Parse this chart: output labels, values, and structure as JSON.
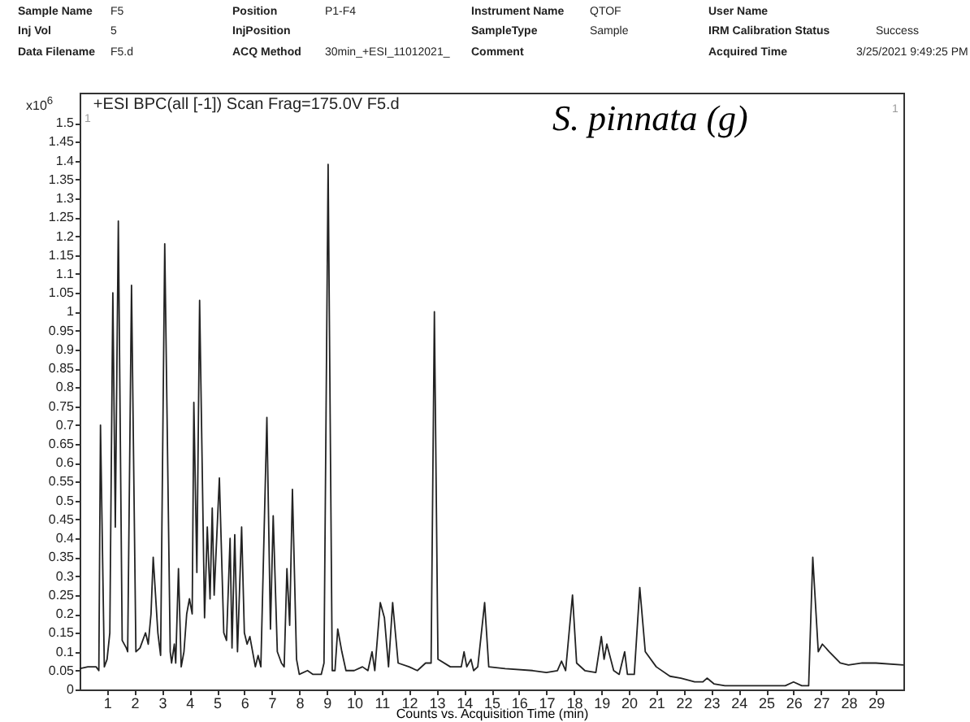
{
  "chart_data": {
    "type": "line",
    "title": "+ESI BPC(all [-1]) Scan Frag=175.0V F5.d",
    "xlabel": "Counts vs. Acquisition Time (min)",
    "ylabel": "x10$^{6}$",
    "annotations": [
      "Sample Name",
      "F5",
      "Position",
      "P1-F4",
      "Instrument Name",
      "QTOF",
      "User Name",
      "Inj Vol",
      "5",
      "InjPosition",
      "SampleType",
      "Sample",
      "IRM Calibration Status",
      "Success",
      "Data Filename",
      "F5.d",
      "ACQ Method",
      "30min_+ESI_11012021_",
      "Comment",
      "Acquired Time",
      "3/25/2021 9:49:25 PM",
      "S. pinnata (g)",
      "1",
      "1"
    ],
    "x": [
      0,
      0.3,
      0.6,
      0.7,
      0.76,
      0.9,
      1.0,
      1.1,
      1.21,
      1.3,
      1.41,
      1.55,
      1.7,
      1.75,
      1.89,
      2.05,
      2.2,
      2.4,
      2.5,
      2.6,
      2.68,
      2.85,
      2.95,
      3.1,
      3.3,
      3.35,
      3.45,
      3.5,
      3.6,
      3.7,
      3.8,
      3.9,
      4.0,
      4.1,
      4.16,
      4.27,
      4.37,
      4.55,
      4.65,
      4.75,
      4.83,
      4.9,
      5.09,
      5.25,
      5.35,
      5.48,
      5.55,
      5.65,
      5.75,
      5.9,
      6.0,
      6.1,
      6.2,
      6.4,
      6.5,
      6.6,
      6.82,
      6.95,
      7.05,
      7.2,
      7.35,
      7.45,
      7.55,
      7.65,
      7.75,
      7.9,
      8.0,
      8.3,
      8.5,
      8.8,
      8.9,
      9.05,
      9.2,
      9.3,
      9.4,
      9.55,
      9.7,
      10.0,
      10.3,
      10.5,
      10.65,
      10.75,
      10.95,
      11.1,
      11.25,
      11.4,
      11.6,
      12.0,
      12.3,
      12.6,
      12.8,
      12.92,
      13.05,
      13.5,
      13.9,
      14.0,
      14.1,
      14.25,
      14.35,
      14.5,
      14.75,
      14.9,
      15.5,
      16.5,
      17.0,
      17.4,
      17.55,
      17.7,
      17.95,
      18.1,
      18.4,
      18.8,
      19.0,
      19.1,
      19.2,
      19.45,
      19.65,
      19.85,
      19.95,
      20.2,
      20.4,
      20.6,
      21.0,
      21.5,
      21.9,
      22.4,
      22.7,
      22.85,
      23.1,
      23.5,
      25.7,
      26.0,
      26.3,
      26.55,
      26.7,
      26.9,
      27.05,
      27.3,
      27.7,
      28.0,
      28.5,
      29,
      30
    ],
    "values": [
      0.055,
      0.06,
      0.06,
      0.05,
      0.7,
      0.06,
      0.08,
      0.15,
      1.05,
      0.43,
      1.24,
      0.13,
      0.11,
      0.1,
      1.07,
      0.1,
      0.11,
      0.15,
      0.12,
      0.2,
      0.35,
      0.15,
      0.09,
      1.18,
      0.1,
      0.07,
      0.12,
      0.07,
      0.32,
      0.06,
      0.1,
      0.2,
      0.24,
      0.2,
      0.76,
      0.31,
      1.03,
      0.19,
      0.43,
      0.24,
      0.48,
      0.25,
      0.56,
      0.15,
      0.13,
      0.4,
      0.11,
      0.41,
      0.1,
      0.43,
      0.15,
      0.12,
      0.14,
      0.06,
      0.09,
      0.06,
      0.72,
      0.16,
      0.46,
      0.1,
      0.07,
      0.06,
      0.32,
      0.17,
      0.53,
      0.08,
      0.04,
      0.05,
      0.04,
      0.04,
      0.07,
      1.39,
      0.05,
      0.05,
      0.16,
      0.1,
      0.05,
      0.05,
      0.06,
      0.05,
      0.1,
      0.05,
      0.23,
      0.19,
      0.06,
      0.23,
      0.07,
      0.06,
      0.05,
      0.07,
      0.07,
      1.0,
      0.08,
      0.06,
      0.06,
      0.1,
      0.06,
      0.08,
      0.05,
      0.06,
      0.23,
      0.06,
      0.055,
      0.05,
      0.045,
      0.05,
      0.075,
      0.05,
      0.25,
      0.07,
      0.05,
      0.045,
      0.14,
      0.08,
      0.12,
      0.05,
      0.04,
      0.1,
      0.04,
      0.04,
      0.27,
      0.1,
      0.06,
      0.035,
      0.03,
      0.02,
      0.02,
      0.03,
      0.015,
      0.01,
      0.01,
      0.02,
      0.01,
      0.01,
      0.35,
      0.1,
      0.12,
      0.1,
      0.07,
      0.065,
      0.07,
      0.07,
      0.065
    ],
    "color": "#222222",
    "xlim": [
      0,
      30
    ],
    "ylim": [
      0,
      1.58
    ],
    "xticks": [
      1,
      2,
      3,
      4,
      5,
      6,
      7,
      8,
      9,
      10,
      11,
      12,
      13,
      14,
      15,
      16,
      17,
      18,
      19,
      20,
      21,
      22,
      23,
      24,
      25,
      26,
      27,
      28,
      29
    ],
    "yticks": [
      0,
      0.05,
      0.1,
      0.15,
      0.2,
      0.25,
      0.3,
      0.35,
      0.4,
      0.45,
      0.5,
      0.55,
      0.6,
      0.65,
      0.7,
      0.75,
      0.8,
      0.85,
      0.9,
      0.95,
      1,
      1.05,
      1.1,
      1.15,
      1.2,
      1.25,
      1.3,
      1.35,
      1.4,
      1.45,
      1.5
    ],
    "grid": false,
    "marker": "none",
    "line_style": "solid"
  }
}
